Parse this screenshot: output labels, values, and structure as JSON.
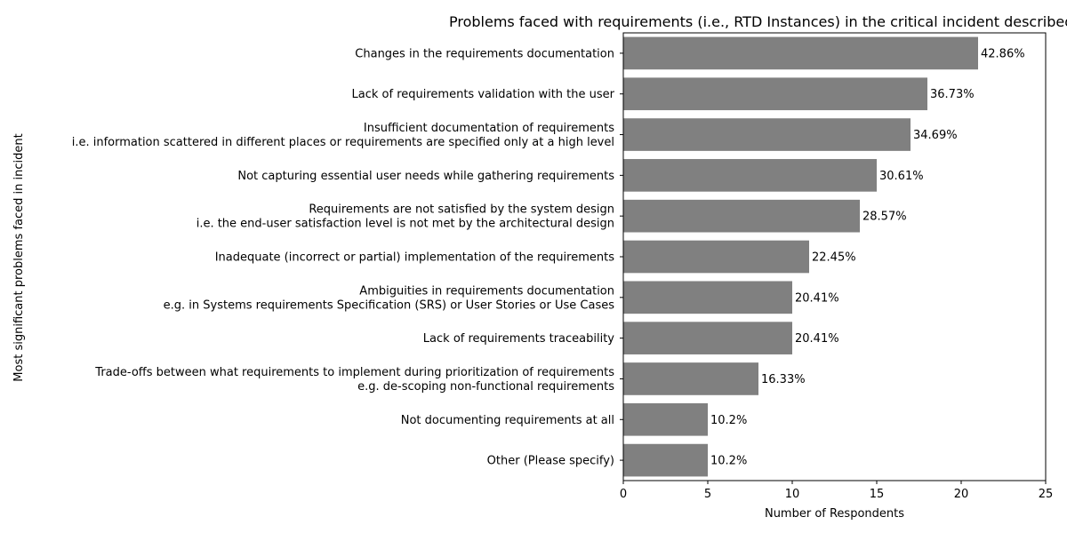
{
  "chart_data": {
    "type": "bar",
    "orientation": "horizontal",
    "title": "Problems faced with requirements (i.e., RTD Instances) in the critical incident described",
    "xlabel": "Number of Respondents",
    "ylabel": "Most significant problems faced in incident",
    "xlim": [
      0,
      25
    ],
    "xticks": [
      0,
      5,
      10,
      15,
      20,
      25
    ],
    "grid": false,
    "bar_color": "#808080",
    "categories": [
      [
        "Changes in the requirements documentation"
      ],
      [
        "Lack of requirements validation with the user"
      ],
      [
        "Insufficient documentation of requirements",
        "i.e. information scattered in different places or requirements are specified only at a high level"
      ],
      [
        "Not capturing essential user needs while gathering requirements"
      ],
      [
        "Requirements are not satisfied by the system design",
        "i.e. the end-user satisfaction level is not met by the architectural design"
      ],
      [
        "Inadequate (incorrect or partial) implementation of the requirements"
      ],
      [
        "Ambiguities in requirements documentation",
        "e.g.  in Systems requirements Specification (SRS) or User Stories or Use Cases"
      ],
      [
        "Lack of requirements traceability"
      ],
      [
        "Trade-offs between what requirements to implement during prioritization of requirements",
        "e.g.  de-scoping non-functional requirements"
      ],
      [
        "Not documenting requirements at all"
      ],
      [
        "Other (Please specify)"
      ]
    ],
    "values": [
      21,
      18,
      17,
      15,
      14,
      11,
      10,
      10,
      8,
      5,
      5
    ],
    "data_labels": [
      "42.86%",
      "36.73%",
      "34.69%",
      "30.61%",
      "28.57%",
      "22.45%",
      "20.41%",
      "20.41%",
      "16.33%",
      "10.2%",
      "10.2%"
    ]
  }
}
